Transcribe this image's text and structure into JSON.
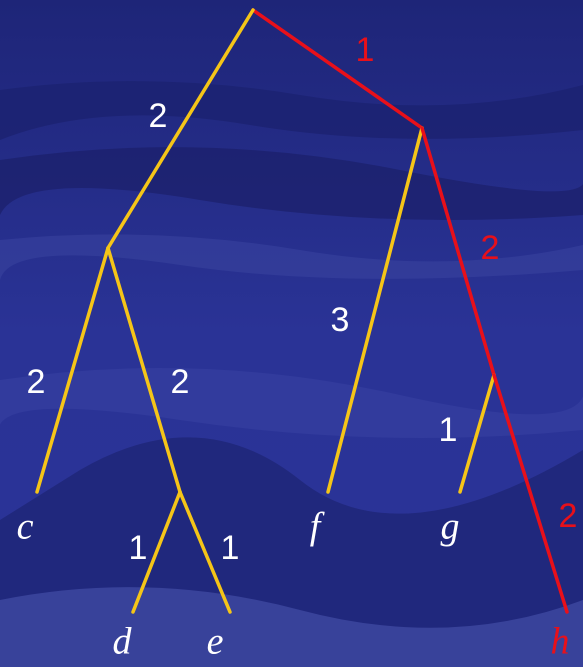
{
  "nodes": [
    {
      "label": "c",
      "color": "#ffffff"
    },
    {
      "label": "d",
      "color": "#ffffff"
    },
    {
      "label": "e",
      "color": "#ffffff"
    },
    {
      "label": "f",
      "color": "#ffffff"
    },
    {
      "label": "g",
      "color": "#ffffff"
    },
    {
      "label": "h",
      "color": "#e8101a"
    }
  ],
  "edges": [
    {
      "weight": 1,
      "color": "#e8101a",
      "label_color": "#e8101a"
    },
    {
      "weight": 2,
      "color": "#f5c518",
      "label_color": "#ffffff"
    },
    {
      "weight": 2,
      "color": "#f5c518",
      "label_color": "#ffffff"
    },
    {
      "weight": 2,
      "color": "#f5c518",
      "label_color": "#ffffff"
    },
    {
      "weight": 1,
      "color": "#f5c518",
      "label_color": "#ffffff"
    },
    {
      "weight": 1,
      "color": "#f5c518",
      "label_color": "#ffffff"
    },
    {
      "weight": 3,
      "color": "#f5c518",
      "label_color": "#ffffff"
    },
    {
      "weight": 2,
      "color": "#e8101a",
      "label_color": "#e8101a"
    },
    {
      "weight": 1,
      "color": "#f5c518",
      "label_color": "#ffffff"
    },
    {
      "weight": 2,
      "color": "#e8101a",
      "label_color": "#e8101a"
    }
  ]
}
